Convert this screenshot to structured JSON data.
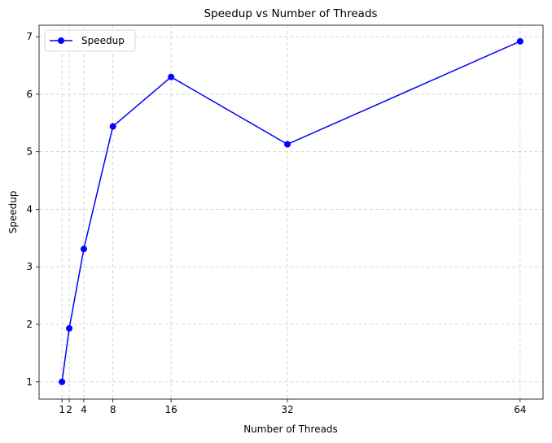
{
  "chart_data": {
    "type": "line",
    "title": "Speedup vs Number of Threads",
    "xlabel": "Number of Threads",
    "ylabel": "Speedup",
    "x": [
      1,
      2,
      4,
      8,
      16,
      32,
      64
    ],
    "xticks": [
      1,
      2,
      4,
      8,
      16,
      32,
      64
    ],
    "xlim": [
      -2.15,
      67.15
    ],
    "yticks": [
      1,
      2,
      3,
      4,
      5,
      6,
      7
    ],
    "ylim": [
      0.7,
      7.2
    ],
    "grid": true,
    "legend_position": "top-left",
    "series": [
      {
        "name": "Speedup",
        "values": [
          1.0,
          1.93,
          3.31,
          5.44,
          6.3,
          5.13,
          6.92
        ],
        "color": "#0000ff",
        "marker": "circle"
      }
    ]
  }
}
